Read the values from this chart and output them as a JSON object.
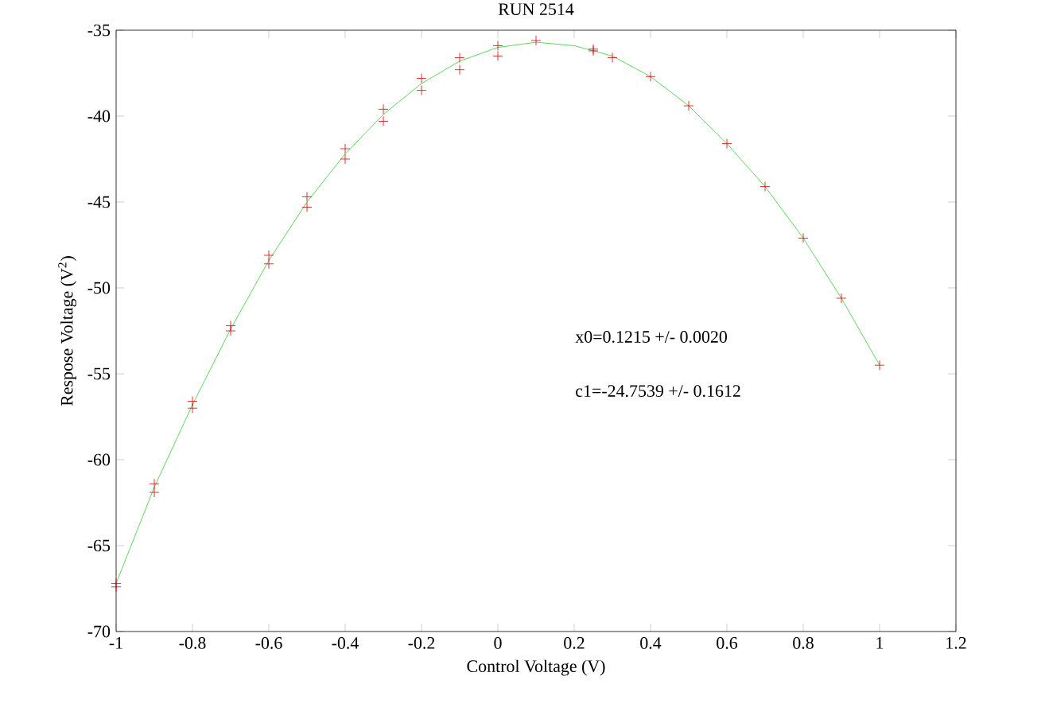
{
  "chart_data": {
    "type": "scatter",
    "title": "RUN 2514",
    "xlabel": "Control Voltage (V)",
    "ylabel": "Respose Voltage (V$^{2}$)",
    "xlim": [
      -1,
      1.2
    ],
    "ylim": [
      -70,
      -35
    ],
    "xticks": [
      -1,
      -0.8,
      -0.6,
      -0.4,
      -0.2,
      0,
      0.2,
      0.4,
      0.6,
      0.8,
      1,
      1.2
    ],
    "yticks": [
      -70,
      -65,
      -60,
      -55,
      -50,
      -45,
      -40,
      -35
    ],
    "marker": "cross",
    "grid": false,
    "annotations": [
      "x0=0.1215 +/- 0.0020",
      "c1=-24.7539 +/- 0.1612"
    ],
    "series": [
      {
        "color": "#dd0000",
        "x": [
          -1,
          -1,
          -0.9,
          -0.9,
          -0.8,
          -0.8,
          -0.7,
          -0.7,
          -0.6,
          -0.6,
          -0.5,
          -0.5,
          -0.4,
          -0.4,
          -0.3,
          -0.3,
          -0.2,
          -0.2,
          -0.1,
          -0.1,
          0,
          0,
          0.1,
          0.25,
          0.25,
          0.3,
          0.4,
          0.5,
          0.6,
          0.7,
          0.8,
          0.9,
          1.0
        ],
        "values": [
          -67.2,
          -67.4,
          -61.4,
          -61.9,
          -56.6,
          -57.0,
          -52.2,
          -52.5,
          -48.1,
          -48.6,
          -44.7,
          -45.3,
          -41.9,
          -42.5,
          -39.6,
          -40.3,
          -37.8,
          -38.5,
          -36.6,
          -37.3,
          -35.9,
          -36.5,
          -35.6,
          -36.1,
          -36.2,
          -36.6,
          -37.7,
          -39.4,
          -41.6,
          -44.1,
          -47.1,
          -50.6,
          -54.5
        ]
      },
      {
        "type": "line",
        "color": "#33cc33",
        "marker": "none",
        "x": [
          -1,
          -0.9,
          -0.8,
          -0.7,
          -0.6,
          -0.5,
          -0.4,
          -0.3,
          -0.2,
          -0.1,
          0,
          0.1,
          0.2,
          0.3,
          0.4,
          0.5,
          0.6,
          0.7,
          0.8,
          0.9,
          1.0
        ],
        "values": [
          -67.2,
          -61.6,
          -56.8,
          -52.4,
          -48.4,
          -45.0,
          -42.2,
          -39.9,
          -38.1,
          -36.8,
          -36.0,
          -35.7,
          -35.9,
          -36.5,
          -37.7,
          -39.4,
          -41.6,
          -44.1,
          -47.1,
          -50.6,
          -54.5
        ]
      }
    ]
  }
}
